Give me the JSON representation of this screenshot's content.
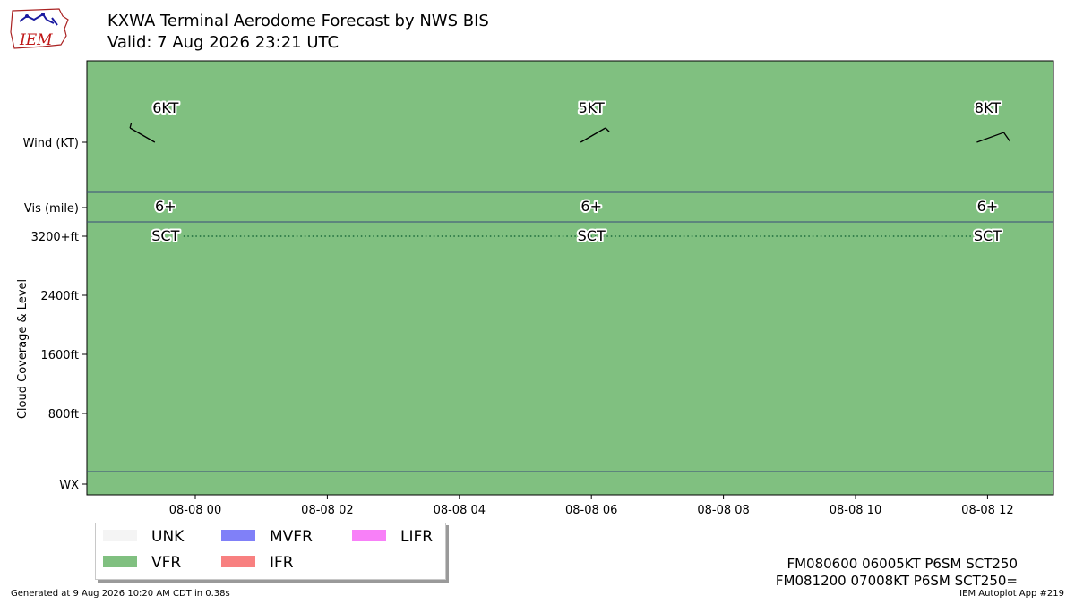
{
  "header": {
    "title_line1": "KXWA Terminal Aerodome Forecast by NWS BIS",
    "title_line2": "Valid: 7 Aug 2026 23:21 UTC"
  },
  "logo": {
    "text": "IEM"
  },
  "chart_data": {
    "type": "timeline",
    "background_category": "VFR",
    "x_ticks": [
      "08-08 00",
      "08-08 02",
      "08-08 04",
      "08-08 06",
      "08-08 08",
      "08-08 10",
      "08-08 12"
    ],
    "y_tick_labels": [
      "Wind (KT)",
      "Vis (mile)",
      "3200+ft",
      "2400ft",
      "1600ft",
      "800ft",
      "WX"
    ],
    "ylabel": "Cloud Coverage & Level",
    "forecasts": [
      {
        "hour": -0.45,
        "wind_label": "6KT",
        "wind_dir_deg": 300,
        "wind_speed_kt": 6,
        "vis_label": "6+",
        "cloud_label": "SCT"
      },
      {
        "hour": 6.0,
        "wind_label": "5KT",
        "wind_dir_deg": 60,
        "wind_speed_kt": 5,
        "vis_label": "6+",
        "cloud_label": "SCT"
      },
      {
        "hour": 12.0,
        "wind_label": "8KT",
        "wind_dir_deg": 70,
        "wind_speed_kt": 8,
        "vis_label": "6+",
        "cloud_label": "SCT"
      }
    ],
    "cloud_level_ft": 3200,
    "colors": {
      "VFR": "#80c080",
      "MVFR": "#8080f8",
      "IFR": "#f88080",
      "LIFR": "#f880f8",
      "UNK": "#f4f4f4"
    }
  },
  "legend": {
    "items": [
      {
        "label": "UNK",
        "color": "#f4f4f4"
      },
      {
        "label": "MVFR",
        "color": "#8080f8"
      },
      {
        "label": "LIFR",
        "color": "#f880f8"
      },
      {
        "label": "VFR",
        "color": "#80c080"
      },
      {
        "label": "IFR",
        "color": "#f88080"
      }
    ]
  },
  "taf_text": {
    "line1": "FM080600 06005KT P6SM SCT250",
    "line2": "FM081200 07008KT P6SM SCT250="
  },
  "footer": {
    "left": "Generated at 9 Aug 2026 10:20 AM CDT in 0.38s",
    "right": "IEM Autoplot App #219"
  }
}
